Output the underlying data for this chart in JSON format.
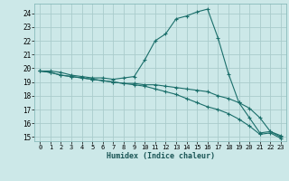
{
  "xlabel": "Humidex (Indice chaleur)",
  "bg_color": "#cce8e8",
  "grid_color": "#aacccc",
  "line_color": "#1a6e6a",
  "xlim": [
    -0.5,
    23.5
  ],
  "ylim": [
    14.7,
    24.7
  ],
  "xticks": [
    0,
    1,
    2,
    3,
    4,
    5,
    6,
    7,
    8,
    9,
    10,
    11,
    12,
    13,
    14,
    15,
    16,
    17,
    18,
    19,
    20,
    21,
    22,
    23
  ],
  "yticks": [
    15,
    16,
    17,
    18,
    19,
    20,
    21,
    22,
    23,
    24
  ],
  "line1_x": [
    0,
    1,
    2,
    3,
    4,
    5,
    6,
    7,
    8,
    9,
    10,
    11,
    12,
    13,
    14,
    15,
    16,
    17,
    18,
    19,
    20,
    21,
    22,
    23
  ],
  "line1_y": [
    19.8,
    19.8,
    19.7,
    19.5,
    19.4,
    19.3,
    19.3,
    19.2,
    19.3,
    19.4,
    20.6,
    22.0,
    22.5,
    23.6,
    23.8,
    24.1,
    24.3,
    22.2,
    19.6,
    17.5,
    16.4,
    15.3,
    15.4,
    15.0
  ],
  "line2_x": [
    0,
    1,
    2,
    3,
    4,
    5,
    6,
    7,
    8,
    9,
    10,
    11,
    12,
    13,
    14,
    15,
    16,
    17,
    18,
    19,
    20,
    21,
    22,
    23
  ],
  "line2_y": [
    19.8,
    19.7,
    19.5,
    19.4,
    19.3,
    19.2,
    19.1,
    19.0,
    18.9,
    18.9,
    18.8,
    18.8,
    18.7,
    18.6,
    18.5,
    18.4,
    18.3,
    18.0,
    17.8,
    17.5,
    17.1,
    16.4,
    15.4,
    15.1
  ],
  "line3_x": [
    0,
    1,
    2,
    3,
    4,
    5,
    6,
    7,
    8,
    9,
    10,
    11,
    12,
    13,
    14,
    15,
    16,
    17,
    18,
    19,
    20,
    21,
    22,
    23
  ],
  "line3_y": [
    19.8,
    19.7,
    19.5,
    19.4,
    19.3,
    19.2,
    19.1,
    19.0,
    18.9,
    18.8,
    18.7,
    18.5,
    18.3,
    18.1,
    17.8,
    17.5,
    17.2,
    17.0,
    16.7,
    16.3,
    15.8,
    15.2,
    15.3,
    14.9
  ]
}
